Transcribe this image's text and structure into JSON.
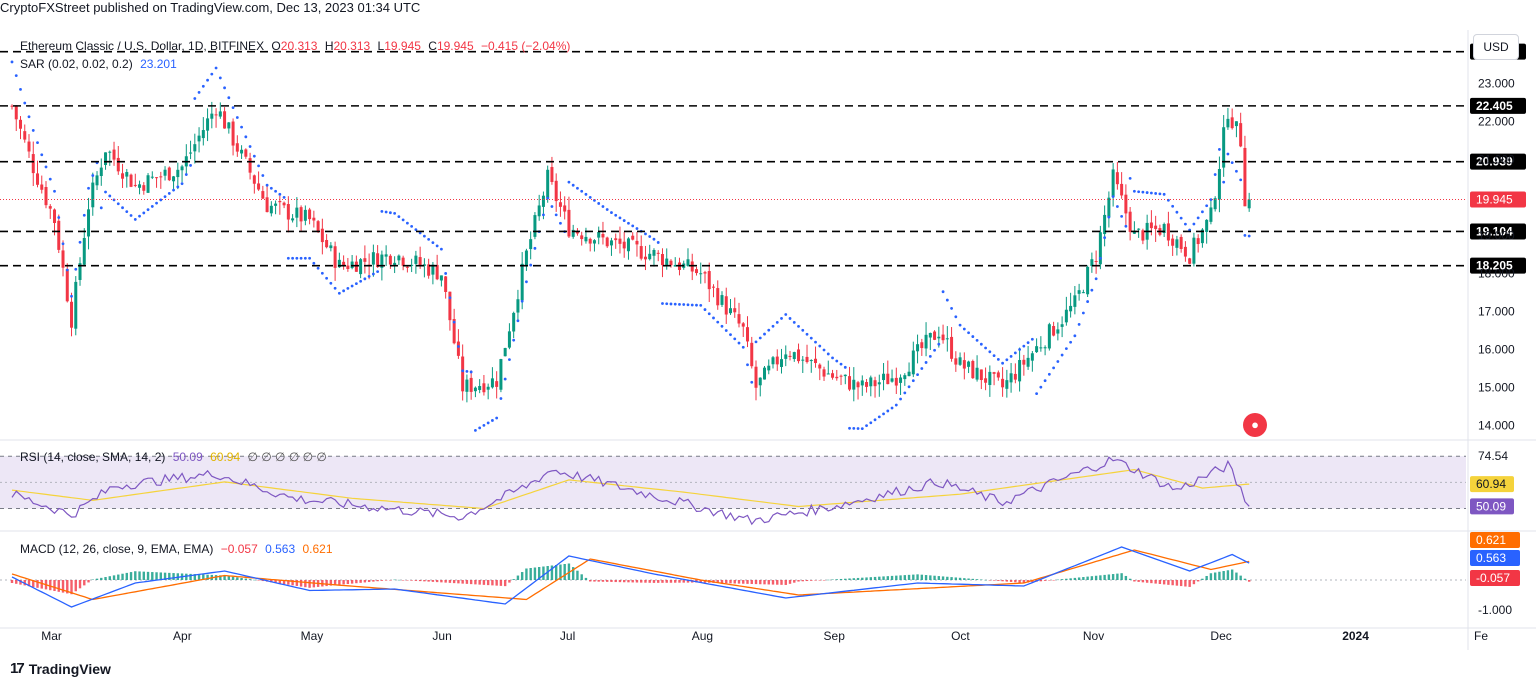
{
  "header": {
    "published": "CryptoFXStreet published on TradingView.com, Dec 13, 2023 01:34 UTC"
  },
  "symbol_legend": {
    "title": "Ethereum Classic / U.S. Dollar, 1D, BITFINEX",
    "o_label": "O",
    "o": "20.313",
    "h_label": "H",
    "h": "20.313",
    "l_label": "L",
    "l": "19.945",
    "c_label": "C",
    "c": "19.945",
    "change": "−0.415 (−2.04%)"
  },
  "sar_legend": {
    "label": "SAR (0.02, 0.02, 0.2)",
    "value": "23.201"
  },
  "rsi_legend": {
    "label": "RSI (14, close, SMA, 14, 2)",
    "rsi": "50.09",
    "sma": "60.94",
    "extras": "∅ ∅ ∅ ∅ ∅ ∅"
  },
  "macd_legend": {
    "label": "MACD (12, 26, close, 9, EMA, EMA)",
    "hist": "−0.057",
    "macd": "0.563",
    "signal": "0.621"
  },
  "currency_button": "USD",
  "brand": "TradingView",
  "colors": {
    "up": "#089981",
    "down": "#f23645",
    "sar": "#2962ff",
    "rsi": "#7e57c2",
    "rsi_sma": "#f5d33b",
    "macd": "#2962ff",
    "signal": "#ff6d00",
    "rsi_band": "#ede7f6"
  },
  "price_axis_ticks": [
    "24.000",
    "23.000",
    "22.000",
    "21.000",
    "20.000",
    "19.000",
    "18.000",
    "17.000",
    "16.000",
    "15.000",
    "14.000"
  ],
  "rsi_axis_ticks": [
    "74.54",
    "49.00"
  ],
  "macd_axis_ticks": [
    "-1.000"
  ],
  "time_axis": [
    "Mar",
    "Apr",
    "May",
    "Jun",
    "Jul",
    "Aug",
    "Sep",
    "Oct",
    "Nov",
    "Dec",
    "2024",
    "Fe"
  ],
  "chart_data": [
    {
      "type": "candlestick",
      "title": "Ethereum Classic / U.S. Dollar, 1D, BITFINEX",
      "ylim": [
        13.7,
        24.4
      ],
      "horizontal_levels": [
        23.83,
        22.405,
        20.939,
        19.104,
        18.205
      ],
      "level_labels": [
        "23.830",
        "22.405",
        "20.939",
        "19.104",
        "18.205"
      ],
      "last_price": 19.945,
      "last_price_label": "19.945",
      "anchors": [
        {
          "m": "2023-02-24",
          "v": 22.4
        },
        {
          "m": "2023-03-01",
          "v": 20.8
        },
        {
          "m": "2023-03-06",
          "v": 19.4
        },
        {
          "m": "2023-03-10",
          "v": 16.8
        },
        {
          "m": "2023-03-14",
          "v": 19.8
        },
        {
          "m": "2023-03-18",
          "v": 21.3
        },
        {
          "m": "2023-03-25",
          "v": 20.3
        },
        {
          "m": "2023-04-05",
          "v": 20.8
        },
        {
          "m": "2023-04-13",
          "v": 22.4
        },
        {
          "m": "2023-04-18",
          "v": 21.3
        },
        {
          "m": "2023-04-25",
          "v": 19.8
        },
        {
          "m": "2023-05-05",
          "v": 19.4
        },
        {
          "m": "2023-05-12",
          "v": 18.2
        },
        {
          "m": "2023-05-25",
          "v": 18.5
        },
        {
          "m": "2023-06-05",
          "v": 18.0
        },
        {
          "m": "2023-06-10",
          "v": 15.0
        },
        {
          "m": "2023-06-18",
          "v": 15.2
        },
        {
          "m": "2023-06-25",
          "v": 18.5
        },
        {
          "m": "2023-06-30",
          "v": 20.5
        },
        {
          "m": "2023-07-05",
          "v": 19.2
        },
        {
          "m": "2023-07-15",
          "v": 18.8
        },
        {
          "m": "2023-07-25",
          "v": 18.5
        },
        {
          "m": "2023-08-05",
          "v": 18.0
        },
        {
          "m": "2023-08-15",
          "v": 16.5
        },
        {
          "m": "2023-08-18",
          "v": 15.0
        },
        {
          "m": "2023-08-25",
          "v": 16.0
        },
        {
          "m": "2023-09-05",
          "v": 15.3
        },
        {
          "m": "2023-09-12",
          "v": 15.0
        },
        {
          "m": "2023-09-20",
          "v": 15.3
        },
        {
          "m": "2023-09-30",
          "v": 16.5
        },
        {
          "m": "2023-10-05",
          "v": 15.6
        },
        {
          "m": "2023-10-15",
          "v": 15.0
        },
        {
          "m": "2023-10-25",
          "v": 16.3
        },
        {
          "m": "2023-11-01",
          "v": 17.2
        },
        {
          "m": "2023-11-06",
          "v": 18.5
        },
        {
          "m": "2023-11-10",
          "v": 20.5
        },
        {
          "m": "2023-11-15",
          "v": 19.0
        },
        {
          "m": "2023-11-22",
          "v": 19.2
        },
        {
          "m": "2023-11-28",
          "v": 18.5
        },
        {
          "m": "2023-12-03",
          "v": 19.5
        },
        {
          "m": "2023-12-07",
          "v": 22.3
        },
        {
          "m": "2023-12-10",
          "v": 21.5
        },
        {
          "m": "2023-12-11",
          "v": 20.0
        },
        {
          "m": "2023-12-12",
          "v": 19.945
        }
      ]
    },
    {
      "type": "line",
      "title": "RSI (14, close, SMA, 14, 2)",
      "ylim": [
        40,
        80
      ],
      "bands": [
        74.54,
        49.0
      ],
      "series": [
        {
          "name": "RSI",
          "anchors": [
            {
              "m": "2023-02-24",
              "v": 56
            },
            {
              "m": "2023-03-10",
              "v": 46
            },
            {
              "m": "2023-03-20",
              "v": 60
            },
            {
              "m": "2023-04-13",
              "v": 66
            },
            {
              "m": "2023-05-01",
              "v": 54
            },
            {
              "m": "2023-06-10",
              "v": 45
            },
            {
              "m": "2023-06-25",
              "v": 60
            },
            {
              "m": "2023-07-01",
              "v": 68
            },
            {
              "m": "2023-07-20",
              "v": 58
            },
            {
              "m": "2023-08-17",
              "v": 43
            },
            {
              "m": "2023-09-05",
              "v": 50
            },
            {
              "m": "2023-09-30",
              "v": 62
            },
            {
              "m": "2023-10-15",
              "v": 52
            },
            {
              "m": "2023-11-10",
              "v": 73
            },
            {
              "m": "2023-11-25",
              "v": 58
            },
            {
              "m": "2023-12-07",
              "v": 70
            },
            {
              "m": "2023-12-12",
              "v": 50.09
            }
          ]
        },
        {
          "name": "SMA",
          "anchors": [
            {
              "m": "2023-02-24",
              "v": 58
            },
            {
              "m": "2023-03-15",
              "v": 53
            },
            {
              "m": "2023-04-15",
              "v": 62
            },
            {
              "m": "2023-05-15",
              "v": 54
            },
            {
              "m": "2023-06-15",
              "v": 49
            },
            {
              "m": "2023-07-05",
              "v": 63
            },
            {
              "m": "2023-08-01",
              "v": 57
            },
            {
              "m": "2023-08-28",
              "v": 50
            },
            {
              "m": "2023-10-05",
              "v": 56
            },
            {
              "m": "2023-11-15",
              "v": 68
            },
            {
              "m": "2023-12-01",
              "v": 59
            },
            {
              "m": "2023-12-12",
              "v": 60.94
            }
          ]
        }
      ],
      "last_labels": {
        "rsi": "50.09",
        "sma": "60.94"
      }
    },
    {
      "type": "line",
      "title": "MACD (12, 26, close, 9, EMA, EMA)",
      "ylim": [
        -1.5,
        1.5
      ],
      "series": [
        {
          "name": "MACD",
          "anchors": [
            {
              "m": "2023-02-24",
              "v": 0.1
            },
            {
              "m": "2023-03-10",
              "v": -0.9
            },
            {
              "m": "2023-03-25",
              "v": -0.1
            },
            {
              "m": "2023-04-15",
              "v": 0.3
            },
            {
              "m": "2023-05-05",
              "v": -0.35
            },
            {
              "m": "2023-05-25",
              "v": -0.3
            },
            {
              "m": "2023-06-20",
              "v": -0.8
            },
            {
              "m": "2023-07-05",
              "v": 0.8
            },
            {
              "m": "2023-07-25",
              "v": 0.2
            },
            {
              "m": "2023-08-25",
              "v": -0.6
            },
            {
              "m": "2023-09-25",
              "v": -0.1
            },
            {
              "m": "2023-10-20",
              "v": -0.2
            },
            {
              "m": "2023-11-12",
              "v": 1.1
            },
            {
              "m": "2023-11-28",
              "v": 0.3
            },
            {
              "m": "2023-12-08",
              "v": 0.85
            },
            {
              "m": "2023-12-12",
              "v": 0.563
            }
          ]
        },
        {
          "name": "Signal",
          "anchors": [
            {
              "m": "2023-02-24",
              "v": 0.2
            },
            {
              "m": "2023-03-15",
              "v": -0.65
            },
            {
              "m": "2023-04-15",
              "v": 0.15
            },
            {
              "m": "2023-05-10",
              "v": -0.15
            },
            {
              "m": "2023-06-25",
              "v": -0.65
            },
            {
              "m": "2023-07-10",
              "v": 0.7
            },
            {
              "m": "2023-08-05",
              "v": 0.0
            },
            {
              "m": "2023-08-28",
              "v": -0.5
            },
            {
              "m": "2023-10-20",
              "v": -0.1
            },
            {
              "m": "2023-11-15",
              "v": 1.0
            },
            {
              "m": "2023-12-03",
              "v": 0.35
            },
            {
              "m": "2023-12-12",
              "v": 0.621
            }
          ]
        }
      ],
      "last_labels": {
        "signal": "0.621",
        "macd": "0.563",
        "hist": "-0.057"
      }
    }
  ]
}
